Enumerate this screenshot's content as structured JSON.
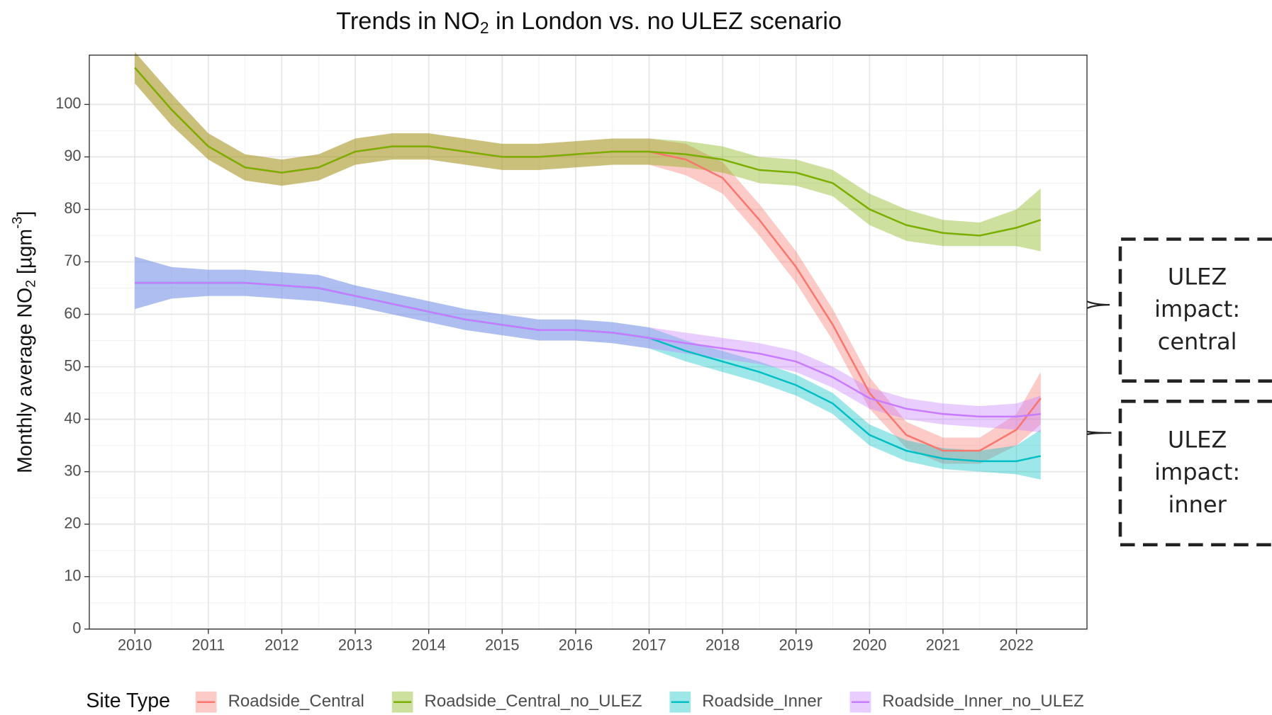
{
  "chart_data": {
    "type": "line",
    "title": [
      "Trends in NO",
      "2",
      " in London vs. no ULEZ scenario"
    ],
    "y_label": [
      "Monthly average NO",
      "2",
      " [µgm",
      "-3",
      "]"
    ],
    "legend_title": "Site Type",
    "legend_position": "bottom",
    "grid": true,
    "xlim": [
      2009.38,
      2022.96
    ],
    "ylim": [
      0,
      109.4
    ],
    "xticks": [
      2010,
      2011,
      2012,
      2013,
      2014,
      2015,
      2016,
      2017,
      2018,
      2019,
      2020,
      2021,
      2022
    ],
    "yticks": [
      0,
      10,
      20,
      30,
      40,
      50,
      60,
      70,
      80,
      90,
      100
    ],
    "x": [
      2010,
      2010.5,
      2011,
      2011.5,
      2012,
      2012.5,
      2013,
      2013.5,
      2014,
      2014.5,
      2015,
      2015.5,
      2016,
      2016.5,
      2017,
      2017.5,
      2018,
      2018.5,
      2019,
      2019.5,
      2020,
      2020.5,
      2021,
      2021.5,
      2022,
      2022.33
    ],
    "series": [
      {
        "name": "Roadside_Central",
        "color": "#F8766D",
        "values": [
          107,
          99,
          92,
          88,
          87,
          88,
          91,
          92,
          92,
          91,
          90,
          90,
          90.5,
          91,
          91,
          89.5,
          86,
          78,
          69,
          58,
          45,
          37,
          34,
          34,
          38,
          44
        ],
        "lower": [
          104,
          96,
          89.5,
          85.5,
          84.5,
          85.5,
          88.5,
          89.5,
          89.5,
          88.5,
          87.5,
          87.5,
          88,
          88.5,
          88.5,
          86.5,
          83,
          75,
          66,
          55,
          42,
          34.5,
          31.5,
          31.5,
          35,
          39
        ],
        "upper": [
          110,
          102,
          94.5,
          90.5,
          89.5,
          90.5,
          93.5,
          94.5,
          94.5,
          93.5,
          92.5,
          92.5,
          93,
          93.5,
          93.5,
          92.5,
          89,
          81,
          72,
          61,
          48,
          39.5,
          36.5,
          36.5,
          41,
          49
        ]
      },
      {
        "name": "Roadside_Central_no_ULEZ",
        "color": "#7CAE00",
        "values": [
          107,
          99,
          92,
          88,
          87,
          88,
          91,
          92,
          92,
          91,
          90,
          90,
          90.5,
          91,
          91,
          90.5,
          89.5,
          87.5,
          87,
          85,
          80,
          77,
          75.5,
          75,
          76.5,
          78
        ],
        "lower": [
          104,
          96,
          89.5,
          85.5,
          84.5,
          85.5,
          88.5,
          89.5,
          89.5,
          88.5,
          87.5,
          87.5,
          88,
          88.5,
          88.5,
          88,
          87,
          85,
          84.5,
          82.5,
          77,
          74,
          73,
          73,
          73,
          72
        ],
        "upper": [
          110,
          102,
          94.5,
          90.5,
          89.5,
          90.5,
          93.5,
          94.5,
          94.5,
          93.5,
          92.5,
          92.5,
          93,
          93.5,
          93.5,
          93,
          92,
          90,
          89.5,
          87.5,
          83,
          80,
          78,
          77.5,
          80,
          84
        ]
      },
      {
        "name": "Roadside_Inner",
        "color": "#00BFC4",
        "values": [
          66,
          66,
          66,
          66,
          65.5,
          65,
          63.5,
          62,
          60.5,
          59,
          58,
          57,
          57,
          56.5,
          55.5,
          53,
          51,
          49,
          46.5,
          43,
          37,
          34,
          32.5,
          32,
          32,
          33
        ],
        "lower": [
          61,
          63,
          63.5,
          63.5,
          63,
          62.5,
          61.5,
          60,
          58.5,
          57,
          56,
          55,
          55,
          54.5,
          53.5,
          51,
          49,
          47,
          44.5,
          41,
          35,
          32,
          30.5,
          30,
          29.5,
          28.5
        ],
        "upper": [
          71,
          69,
          68.5,
          68.5,
          68,
          67.5,
          65.5,
          64,
          62.5,
          61,
          60,
          59,
          59,
          58.5,
          57.5,
          55,
          53,
          51,
          48.5,
          45,
          39,
          36,
          34.5,
          34,
          35,
          38
        ]
      },
      {
        "name": "Roadside_Inner_no_ULEZ",
        "color": "#C77CFF",
        "values": [
          66,
          66,
          66,
          66,
          65.5,
          65,
          63.5,
          62,
          60.5,
          59,
          58,
          57,
          57,
          56.5,
          55.5,
          54.5,
          53.5,
          52.5,
          51,
          48,
          44,
          42,
          41,
          40.5,
          40.5,
          41
        ],
        "lower": [
          61,
          63,
          63.5,
          63.5,
          63,
          62.5,
          61.5,
          60,
          58.5,
          57,
          56,
          55,
          55,
          54.5,
          53.5,
          52.5,
          51.5,
          50.5,
          49,
          46,
          42,
          40,
          39,
          38.5,
          38,
          37.5
        ],
        "upper": [
          71,
          69,
          68.5,
          68.5,
          68,
          67.5,
          65.5,
          64,
          62.5,
          61,
          60,
          59,
          59,
          58.5,
          57.5,
          56.5,
          55.5,
          54.5,
          53,
          50,
          46,
          44,
          43,
          42.5,
          43,
          44.5
        ]
      }
    ],
    "annotations": [
      [
        "ULEZ",
        "impact:",
        "central"
      ],
      [
        "ULEZ",
        "impact:",
        "inner"
      ]
    ]
  }
}
